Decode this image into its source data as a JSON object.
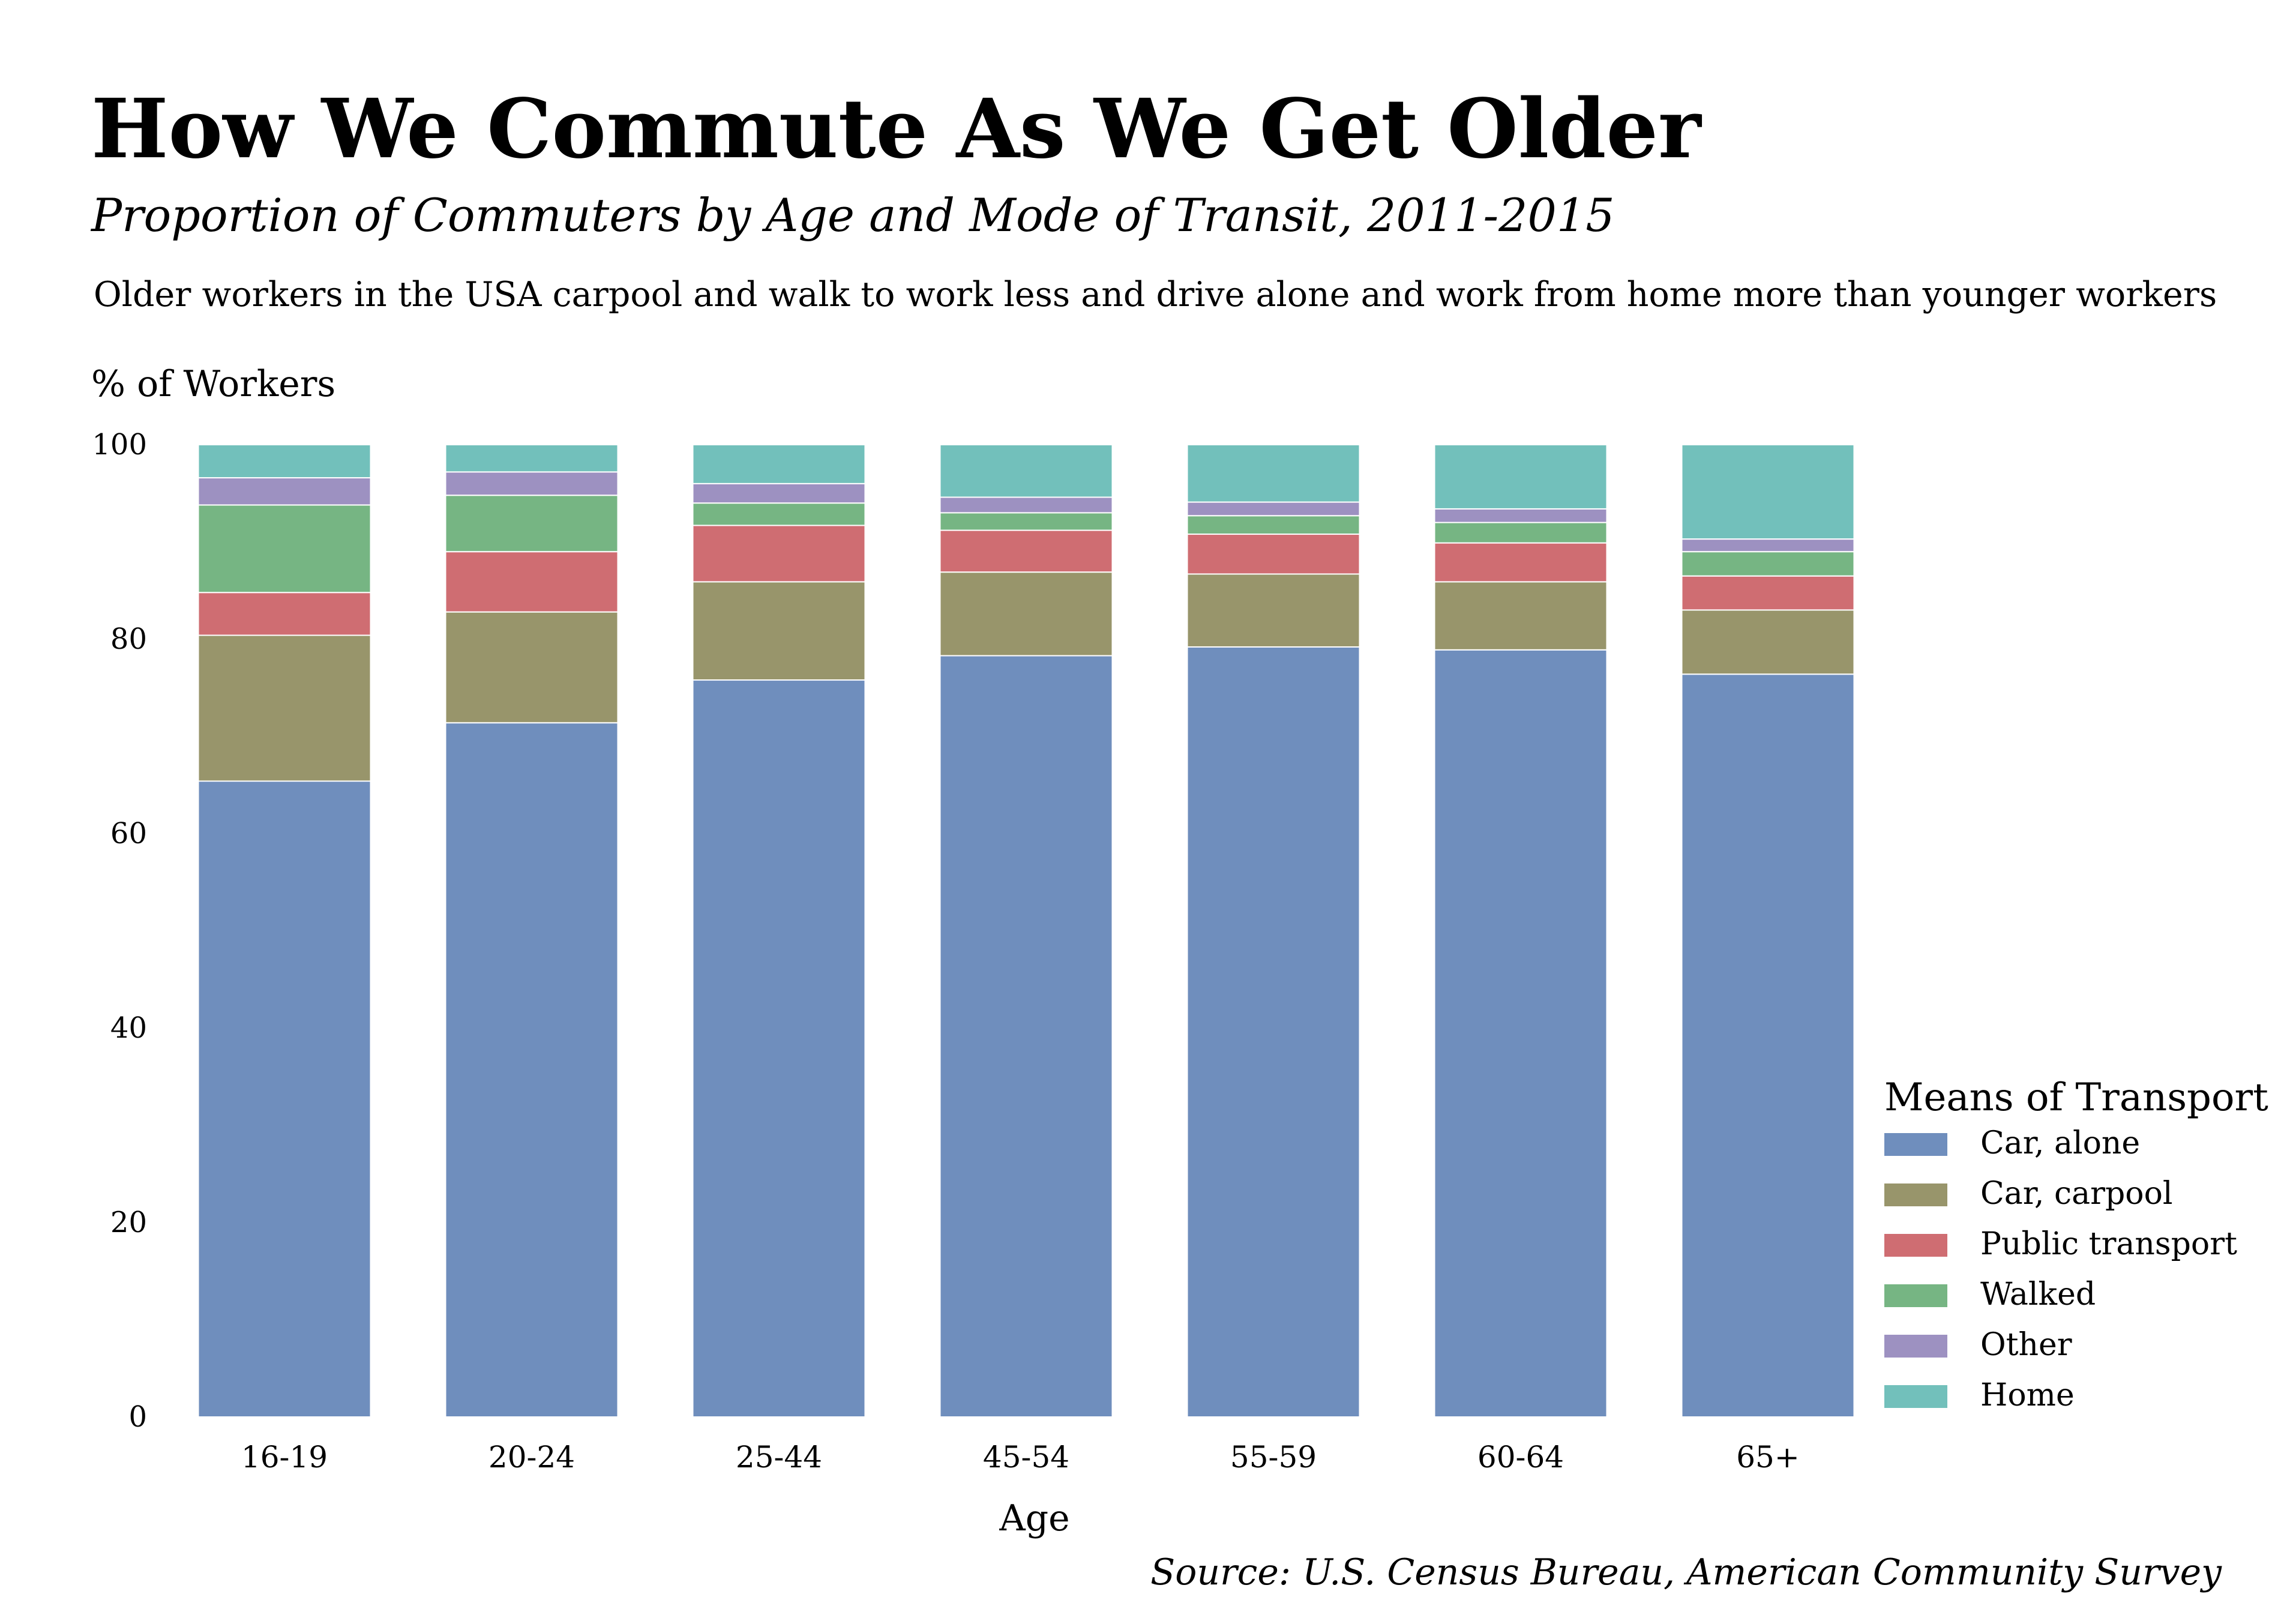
{
  "colors": {
    "Car, alone": "#6f8ebd",
    "Car, carpool": "#98956b",
    "Public transport": "#cf6d72",
    "Walked": "#76b583",
    "Other": "#9d91c1",
    "Home": "#72c0bb"
  },
  "chart_data": {
    "type": "bar",
    "stacked": true,
    "title": "How We Commute As We Get Older",
    "subtitle": "Proportion of Commuters by Age and Mode of Transit, 2011-2015",
    "description": "Older workers in the USA carpool and walk to work less and drive alone and work from home more than younger workers",
    "ylabel": "% of Workers",
    "xlabel": "Age",
    "source": "Source: U.S. Census Bureau, American Community Survey",
    "ylim": [
      0,
      100
    ],
    "yticks": [
      0,
      20,
      40,
      60,
      80,
      100
    ],
    "grid": false,
    "legend": {
      "title": "Means of Transport",
      "placement": "bottom-right"
    },
    "categories": [
      "16-19",
      "20-24",
      "25-44",
      "45-54",
      "55-59",
      "60-64",
      "65+"
    ],
    "series": [
      {
        "name": "Car, alone",
        "values": [
          65.4,
          71.4,
          75.8,
          78.3,
          79.2,
          78.9,
          76.4
        ]
      },
      {
        "name": "Car, carpool",
        "values": [
          15.0,
          11.4,
          10.1,
          8.6,
          7.5,
          7.0,
          6.6
        ]
      },
      {
        "name": "Public transport",
        "values": [
          4.4,
          6.2,
          5.8,
          4.3,
          4.1,
          4.0,
          3.5
        ]
      },
      {
        "name": "Walked",
        "values": [
          9.0,
          5.8,
          2.3,
          1.8,
          1.9,
          2.1,
          2.5
        ]
      },
      {
        "name": "Other",
        "values": [
          2.8,
          2.4,
          2.0,
          1.6,
          1.4,
          1.4,
          1.3
        ]
      },
      {
        "name": "Home",
        "values": [
          3.4,
          2.8,
          4.0,
          5.4,
          5.9,
          6.6,
          9.7
        ]
      }
    ]
  }
}
